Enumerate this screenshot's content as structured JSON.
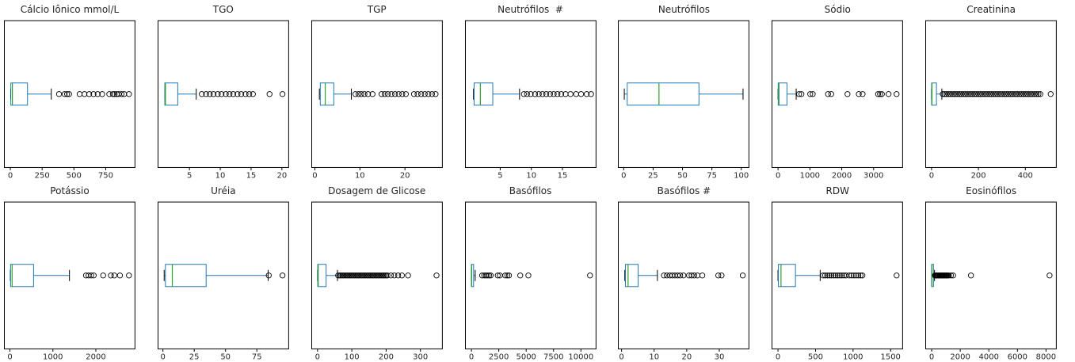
{
  "figure": {
    "background": "#ffffff",
    "rows": 2,
    "cols": 7
  },
  "colors": {
    "box": "#1f77b4",
    "median": "#2ca02c",
    "whisker": "#1f77b4",
    "cap": "#000000",
    "flier": "#000000",
    "frame": "#000000",
    "tick_text": "#262626"
  },
  "chart_data": [
    {
      "type": "box",
      "orientation": "horizontal",
      "title": "Cálcio Iônico mmol/L",
      "xlim": [
        -47,
        980
      ],
      "xticks": [
        0,
        250,
        500,
        750
      ],
      "box": {
        "whislo": 3,
        "q1": 4,
        "med": 16,
        "q3": 135,
        "whishi": 322
      },
      "outliers": [
        383,
        427,
        446,
        462,
        545,
        583,
        620,
        654,
        687,
        722,
        778,
        806,
        820,
        837,
        853,
        875,
        895,
        933
      ]
    },
    {
      "type": "box",
      "orientation": "horizontal",
      "title": "TGO",
      "xlim": [
        -0.1,
        21.1
      ],
      "xticks": [
        5,
        10,
        15,
        20
      ],
      "box": {
        "whislo": 1.0,
        "q1": 1.0,
        "med": 1.1,
        "q3": 3.1,
        "whishi": 6.1
      },
      "outliers": [
        7.0,
        7.7,
        8.3,
        8.9,
        9.6,
        10.2,
        10.9,
        11.5,
        12.1,
        12.8,
        13.4,
        14.1,
        14.7,
        15.3,
        18.0,
        20.1
      ]
    },
    {
      "type": "box",
      "orientation": "horizontal",
      "title": "TGP",
      "xlim": [
        -0.7,
        28.3
      ],
      "xticks": [
        0,
        10,
        20
      ],
      "box": {
        "whislo": 1.0,
        "q1": 1.2,
        "med": 2.3,
        "q3": 4.2,
        "whishi": 8.1
      },
      "outliers": [
        9.0,
        9.7,
        10.3,
        11.0,
        11.8,
        12.8,
        14.8,
        15.5,
        16.2,
        17.0,
        17.8,
        18.6,
        19.4,
        20.2,
        22.0,
        22.8,
        23.6,
        24.4,
        25.2,
        26.0,
        26.8
      ]
    },
    {
      "type": "box",
      "orientation": "horizontal",
      "title": "Neutrófilos  #",
      "xlim": [
        -0.6,
        20.4
      ],
      "xticks": [
        5,
        10,
        15
      ],
      "box": {
        "whislo": 0.7,
        "q1": 0.8,
        "med": 1.8,
        "q3": 3.8,
        "whishi": 8.1
      },
      "outliers": [
        8.8,
        9.3,
        9.9,
        10.6,
        11.2,
        11.8,
        12.4,
        13.0,
        13.6,
        14.2,
        14.8,
        15.5,
        16.3,
        17.2,
        18.0,
        18.9,
        19.6
      ]
    },
    {
      "type": "box",
      "orientation": "horizontal",
      "title": "Neutrófilos",
      "xlim": [
        -4.6,
        106.5
      ],
      "xticks": [
        0,
        25,
        50,
        75,
        100
      ],
      "box": {
        "whislo": 0.5,
        "q1": 3,
        "med": 30,
        "q3": 64,
        "whishi": 101.5
      },
      "outliers": []
    },
    {
      "type": "box",
      "orientation": "horizontal",
      "title": "Sódio",
      "xlim": [
        -190,
        3910
      ],
      "xticks": [
        0,
        1000,
        2000,
        3000
      ],
      "box": {
        "whislo": 0,
        "q1": 5,
        "med": 30,
        "q3": 280,
        "whishi": 570
      },
      "outliers": [
        660,
        735,
        1010,
        1090,
        1570,
        1670,
        2180,
        2535,
        2655,
        3140,
        3200,
        3260,
        3470,
        3720
      ]
    },
    {
      "type": "box",
      "orientation": "horizontal",
      "title": "Creatinina",
      "xlim": [
        -25,
        532
      ],
      "xticks": [
        0,
        200,
        400
      ],
      "box": {
        "whislo": 0,
        "q1": 0.5,
        "med": 2,
        "q3": 21,
        "whishi": 44
      },
      "outliers": [
        48,
        56,
        64,
        72,
        80,
        88,
        96,
        104,
        112,
        120,
        128,
        136,
        144,
        152,
        160,
        168,
        176,
        184,
        192,
        200,
        208,
        216,
        224,
        232,
        240,
        248,
        256,
        264,
        272,
        280,
        288,
        296,
        304,
        312,
        320,
        328,
        336,
        344,
        352,
        360,
        368,
        376,
        384,
        392,
        400,
        408,
        416,
        424,
        432,
        440,
        448,
        456,
        464,
        508
      ]
    },
    {
      "type": "box",
      "orientation": "horizontal",
      "title": "Potássio",
      "xlim": [
        -130,
        2910
      ],
      "xticks": [
        0,
        1000,
        2000
      ],
      "box": {
        "whislo": 10,
        "q1": 15,
        "med": 50,
        "q3": 550,
        "whishi": 1385
      },
      "outliers": [
        1770,
        1830,
        1890,
        1950,
        2170,
        2350,
        2430,
        2560,
        2770
      ]
    },
    {
      "type": "box",
      "orientation": "horizontal",
      "title": "Uréia",
      "xlim": [
        -3.9,
        100.4
      ],
      "xticks": [
        0,
        25,
        50,
        75
      ],
      "box": {
        "whislo": 1,
        "q1": 2,
        "med": 7.5,
        "q3": 34.5,
        "whishi": 84
      },
      "outliers": [
        84.5,
        95.5
      ]
    },
    {
      "type": "box",
      "orientation": "horizontal",
      "title": "Dosagem de Glicose",
      "xlim": [
        -17,
        364
      ],
      "xticks": [
        0,
        100,
        200,
        300
      ],
      "box": {
        "whislo": 0,
        "q1": 0.5,
        "med": 2,
        "q3": 25,
        "whishi": 58
      },
      "outliers": [
        60,
        64,
        68,
        72,
        76,
        80,
        84,
        88,
        92,
        96,
        100,
        104,
        108,
        112,
        116,
        120,
        124,
        128,
        132,
        136,
        140,
        144,
        148,
        152,
        156,
        160,
        164,
        168,
        172,
        176,
        180,
        184,
        188,
        192,
        196,
        200,
        204,
        214,
        224,
        235,
        246,
        264,
        347
      ]
    },
    {
      "type": "box",
      "orientation": "horizontal",
      "title": "Basófilos",
      "xlim": [
        -550,
        11380
      ],
      "xticks": [
        0,
        2500,
        5000,
        7500,
        10000
      ],
      "box": {
        "whislo": 0,
        "q1": 0,
        "med": 25,
        "q3": 195,
        "whishi": 345
      },
      "outliers": [
        980,
        1170,
        1320,
        1470,
        1620,
        1760,
        2400,
        2600,
        3090,
        3280,
        3430,
        4460,
        5200,
        10830
      ]
    },
    {
      "type": "box",
      "orientation": "horizontal",
      "title": "Basófilos #",
      "xlim": [
        -1.0,
        39.1
      ],
      "xticks": [
        0,
        10,
        20,
        30
      ],
      "box": {
        "whislo": 1,
        "q1": 1.2,
        "med": 2,
        "q3": 5.1,
        "whishi": 11
      },
      "outliers": [
        13.0,
        13.9,
        14.8,
        15.6,
        16.4,
        17.2,
        18.0,
        19.0,
        20.7,
        21.5,
        22.3,
        23.3,
        24.8,
        29.7,
        30.7,
        37.2
      ]
    },
    {
      "type": "box",
      "orientation": "horizontal",
      "title": "RDW",
      "xlim": [
        -80,
        1660
      ],
      "xticks": [
        0,
        500,
        1000,
        1500
      ],
      "box": {
        "whislo": 0,
        "q1": 5,
        "med": 40,
        "q3": 233,
        "whishi": 562
      },
      "outliers": [
        600,
        628,
        656,
        684,
        712,
        740,
        768,
        796,
        824,
        852,
        880,
        908,
        950,
        980,
        1010,
        1040,
        1070,
        1100,
        1125,
        1580
      ]
    },
    {
      "type": "box",
      "orientation": "horizontal",
      "title": "Eosinófilos",
      "xlim": [
        -420,
        8720
      ],
      "xticks": [
        0,
        2000,
        4000,
        6000,
        8000
      ],
      "box": {
        "whislo": 0,
        "q1": 0,
        "med": 20,
        "q3": 126,
        "whishi": 198
      },
      "outliers": [
        230,
        280,
        330,
        380,
        430,
        480,
        530,
        580,
        630,
        680,
        730,
        780,
        830,
        880,
        930,
        980,
        1030,
        1080,
        1130,
        1200,
        1350,
        1500,
        2750,
        8250
      ]
    }
  ]
}
